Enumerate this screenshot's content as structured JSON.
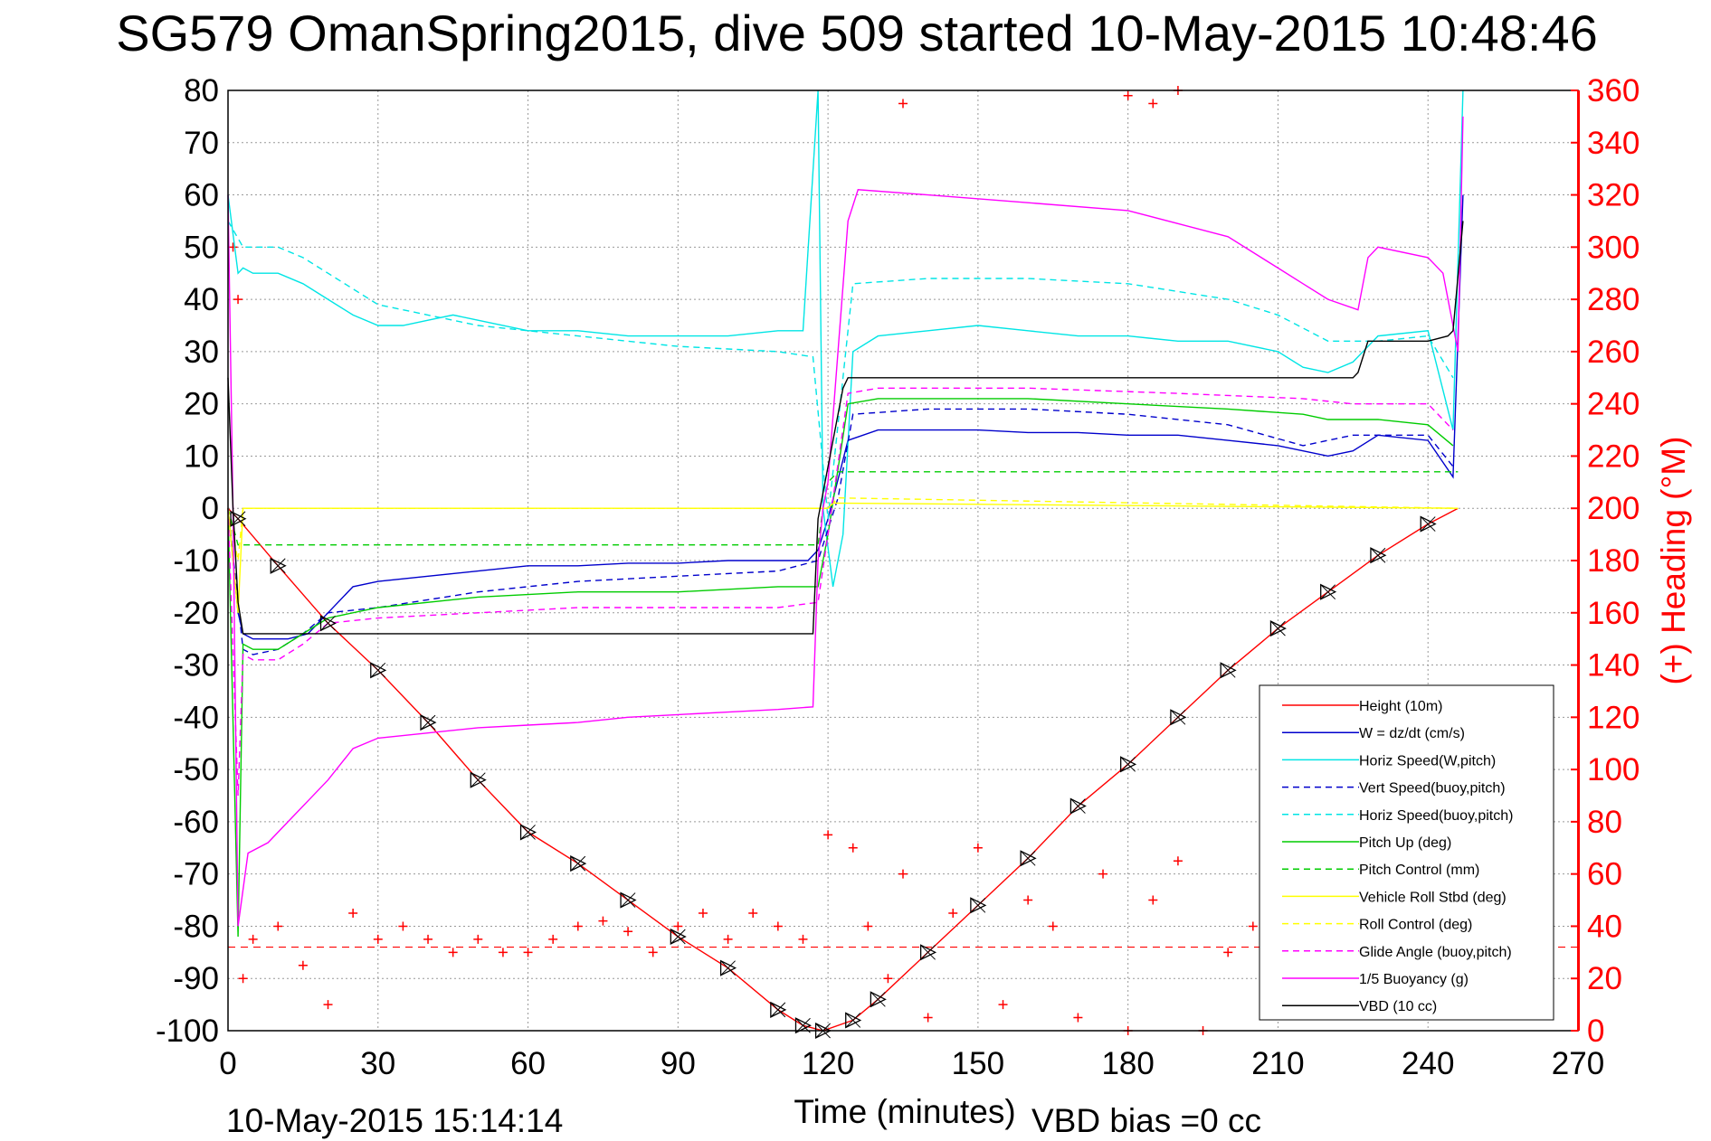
{
  "chart_data": {
    "type": "line",
    "title": "SG579 OmanSpring2015, dive 509 started 10-May-2015 10:48:46",
    "xlabel": "Time (minutes)",
    "ylabel": "",
    "ylabel_right": "(+) Heading (°M)",
    "xlim": [
      0,
      270
    ],
    "ylim": [
      -100,
      80
    ],
    "ylim_right": [
      0,
      360
    ],
    "xticks": [
      "0",
      "30",
      "60",
      "90",
      "120",
      "150",
      "180",
      "210",
      "240",
      "270"
    ],
    "yticks": [
      "-100",
      "-90",
      "-80",
      "-70",
      "-60",
      "-50",
      "-40",
      "-30",
      "-20",
      "-10",
      "0",
      "10",
      "20",
      "30",
      "40",
      "50",
      "60",
      "70",
      "80"
    ],
    "yticks_right": [
      "0",
      "20",
      "40",
      "60",
      "80",
      "100",
      "120",
      "140",
      "160",
      "180",
      "200",
      "220",
      "240",
      "260",
      "280",
      "300",
      "320",
      "340",
      "360"
    ],
    "grid": true,
    "legend_position": "bottom-right",
    "footer_left": "10-May-2015 15:14:14",
    "footer_right": "VBD bias =0 cc",
    "colors": {
      "height": "#ff0000",
      "w": "#0000cc",
      "horiz_speed": "#00e5e5",
      "pitch": "#00cc00",
      "roll": "#ffff00",
      "glide": "#ff00ff",
      "buoyancy": "#ff00ff",
      "vbd": "#000000",
      "heading": "#ff0000"
    },
    "series": [
      {
        "name": "Height (10m)",
        "style": "solid",
        "color": "#ff0000",
        "x": [
          0,
          2,
          10,
          20,
          30,
          40,
          50,
          60,
          70,
          80,
          90,
          100,
          110,
          115,
          119,
          125,
          130,
          140,
          150,
          160,
          170,
          180,
          190,
          200,
          210,
          220,
          230,
          240,
          246
        ],
        "y": [
          0,
          -2,
          -11,
          -22,
          -31,
          -41,
          -52,
          -62,
          -68,
          -75,
          -82,
          -88,
          -96,
          -99,
          -100,
          -98,
          -94,
          -85,
          -76,
          -67,
          -57,
          -49,
          -40,
          -31,
          -23,
          -16,
          -9,
          -3,
          0
        ]
      },
      {
        "name": "W = dz/dt (cm/s)",
        "style": "solid",
        "color": "#0000cc",
        "x": [
          0,
          2,
          3,
          5,
          8,
          12,
          16,
          20,
          25,
          30,
          40,
          50,
          60,
          70,
          80,
          90,
          100,
          110,
          116,
          118,
          120,
          124,
          130,
          140,
          150,
          160,
          170,
          180,
          190,
          200,
          210,
          215,
          220,
          225,
          230,
          240,
          245,
          247
        ],
        "y": [
          0,
          -20,
          -24,
          -25,
          -25,
          -25,
          -24,
          -20,
          -15,
          -14,
          -13,
          -12,
          -11,
          -11,
          -10.5,
          -10.5,
          -10,
          -10,
          -10,
          -8,
          -2,
          13,
          15,
          15,
          15,
          14.5,
          14.5,
          14,
          14,
          13,
          12,
          11,
          10,
          11,
          14,
          13,
          6,
          60
        ]
      },
      {
        "name": "Horiz Speed(W,pitch)",
        "style": "solid",
        "color": "#00e5e5",
        "x": [
          0,
          2,
          3,
          5,
          10,
          15,
          20,
          25,
          30,
          35,
          40,
          45,
          50,
          60,
          70,
          80,
          90,
          100,
          110,
          115,
          118,
          119,
          121,
          123,
          125,
          130,
          140,
          150,
          160,
          170,
          180,
          190,
          200,
          210,
          215,
          220,
          225,
          230,
          240,
          245,
          247
        ],
        "y": [
          60,
          45,
          46,
          45,
          45,
          43,
          40,
          37,
          35,
          35,
          36,
          37,
          36,
          34,
          34,
          33,
          33,
          33,
          34,
          34,
          80,
          0,
          -15,
          -5,
          30,
          33,
          34,
          35,
          34,
          33,
          33,
          32,
          32,
          30,
          27,
          26,
          28,
          33,
          34,
          15,
          80
        ]
      },
      {
        "name": "Vert Speed(buoy,pitch)",
        "style": "dashed",
        "color": "#0000cc",
        "x": [
          0,
          3,
          5,
          10,
          15,
          20,
          30,
          50,
          70,
          90,
          110,
          118,
          122,
          125,
          140,
          160,
          180,
          200,
          215,
          225,
          240,
          245
        ],
        "y": [
          0,
          -27,
          -28,
          -27,
          -24,
          -20,
          -19,
          -16,
          -14,
          -13,
          -12,
          -10,
          2,
          18,
          19,
          19,
          18,
          16,
          12,
          14,
          14,
          8
        ]
      },
      {
        "name": "Horiz Speed(buoy,pitch)",
        "style": "dashed",
        "color": "#00e5e5",
        "x": [
          0,
          3,
          5,
          10,
          15,
          20,
          30,
          50,
          70,
          90,
          110,
          117,
          120,
          125,
          140,
          160,
          180,
          200,
          210,
          220,
          230,
          240,
          245
        ],
        "y": [
          55,
          50,
          50,
          50,
          48,
          45,
          39,
          35,
          33,
          31,
          30,
          29,
          -2,
          43,
          44,
          44,
          43,
          40,
          37,
          32,
          32,
          33,
          25
        ]
      },
      {
        "name": "Pitch Up (deg)",
        "style": "solid",
        "color": "#00cc00",
        "x": [
          0,
          2,
          3,
          5,
          10,
          15,
          20,
          30,
          50,
          70,
          90,
          110,
          118,
          120,
          124,
          130,
          140,
          160,
          180,
          200,
          215,
          220,
          230,
          240,
          245
        ],
        "y": [
          0,
          -82,
          -26,
          -27,
          -27,
          -24,
          -21,
          -19,
          -17,
          -16,
          -16,
          -15,
          -15,
          -5,
          20,
          21,
          21,
          21,
          20,
          19,
          18,
          17,
          17,
          16,
          12
        ]
      },
      {
        "name": "Pitch Control (mm)",
        "style": "dashed",
        "color": "#00cc00",
        "x": [
          0,
          2,
          3,
          118,
          119,
          120,
          122,
          246
        ],
        "y": [
          0,
          -7,
          -7,
          -7,
          0,
          5,
          7,
          7
        ]
      },
      {
        "name": "Vehicle Roll Stbd (deg)",
        "style": "solid",
        "color": "#ffff00",
        "x": [
          0,
          2,
          3,
          120,
          121,
          246
        ],
        "y": [
          0,
          -20,
          0,
          0,
          1,
          0
        ]
      },
      {
        "name": "Roll Control (deg)",
        "style": "dashed",
        "color": "#ffff00",
        "x": [
          0,
          2,
          3,
          120,
          122,
          246
        ],
        "y": [
          0,
          -10,
          0,
          0,
          2,
          0
        ]
      },
      {
        "name": "Glide Angle (buoy,pitch)",
        "style": "dashed",
        "color": "#ff00ff",
        "x": [
          0,
          2,
          3,
          5,
          10,
          15,
          20,
          30,
          50,
          70,
          90,
          110,
          118,
          120,
          124,
          130,
          160,
          190,
          215,
          225,
          240,
          245
        ],
        "y": [
          0,
          -55,
          -28,
          -29,
          -29,
          -26,
          -22,
          -21,
          -20,
          -19,
          -19,
          -19,
          -18,
          -5,
          22,
          23,
          23,
          22,
          21,
          20,
          20,
          15
        ]
      },
      {
        "name": "1/5 Buoyancy (g)",
        "style": "solid",
        "color": "#ff00ff",
        "x": [
          0,
          1,
          2,
          4,
          8,
          12,
          16,
          20,
          25,
          30,
          40,
          50,
          60,
          70,
          80,
          90,
          100,
          110,
          117,
          118,
          119,
          120,
          124,
          126,
          140,
          160,
          180,
          200,
          210,
          215,
          220,
          226,
          228,
          230,
          240,
          243,
          246,
          247
        ],
        "y": [
          60,
          0,
          -80,
          -66,
          -64,
          -60,
          -56,
          -52,
          -46,
          -44,
          -43,
          -42,
          -41.5,
          -41,
          -40,
          -39.5,
          -39,
          -38.5,
          -38,
          -10,
          0,
          5,
          55,
          61,
          60,
          58.5,
          57,
          52,
          46,
          43,
          40,
          38,
          48,
          50,
          48,
          45,
          30,
          75
        ]
      },
      {
        "name": "VBD (10 cc)",
        "style": "solid",
        "color": "#000000",
        "x": [
          0,
          1,
          2,
          3,
          117,
          118,
          123,
          124,
          225,
          226,
          228,
          240,
          244,
          245,
          247
        ],
        "y": [
          25,
          0,
          -18,
          -24,
          -24,
          -2,
          23,
          25,
          25,
          26,
          32,
          32,
          33,
          34,
          55
        ]
      }
    ],
    "heading_marker": "+",
    "heading_reference": 32,
    "heading_samples": [
      [
        1,
        300
      ],
      [
        2,
        280
      ],
      [
        3,
        20
      ],
      [
        5,
        35
      ],
      [
        10,
        40
      ],
      [
        15,
        25
      ],
      [
        20,
        10
      ],
      [
        25,
        45
      ],
      [
        30,
        35
      ],
      [
        35,
        40
      ],
      [
        40,
        35
      ],
      [
        45,
        30
      ],
      [
        50,
        35
      ],
      [
        55,
        30
      ],
      [
        60,
        30
      ],
      [
        65,
        35
      ],
      [
        70,
        40
      ],
      [
        75,
        42
      ],
      [
        80,
        38
      ],
      [
        85,
        30
      ],
      [
        90,
        40
      ],
      [
        95,
        45
      ],
      [
        100,
        35
      ],
      [
        105,
        45
      ],
      [
        110,
        40
      ],
      [
        115,
        35
      ],
      [
        120,
        75
      ],
      [
        125,
        70
      ],
      [
        128,
        40
      ],
      [
        132,
        20
      ],
      [
        135,
        60
      ],
      [
        140,
        5
      ],
      [
        145,
        45
      ],
      [
        150,
        70
      ],
      [
        155,
        10
      ],
      [
        160,
        50
      ],
      [
        165,
        40
      ],
      [
        170,
        5
      ],
      [
        175,
        60
      ],
      [
        180,
        0
      ],
      [
        185,
        50
      ],
      [
        190,
        65
      ],
      [
        195,
        0
      ],
      [
        200,
        30
      ],
      [
        205,
        40
      ],
      [
        190,
        360
      ],
      [
        185,
        355
      ],
      [
        180,
        358
      ],
      [
        135,
        355
      ]
    ]
  }
}
